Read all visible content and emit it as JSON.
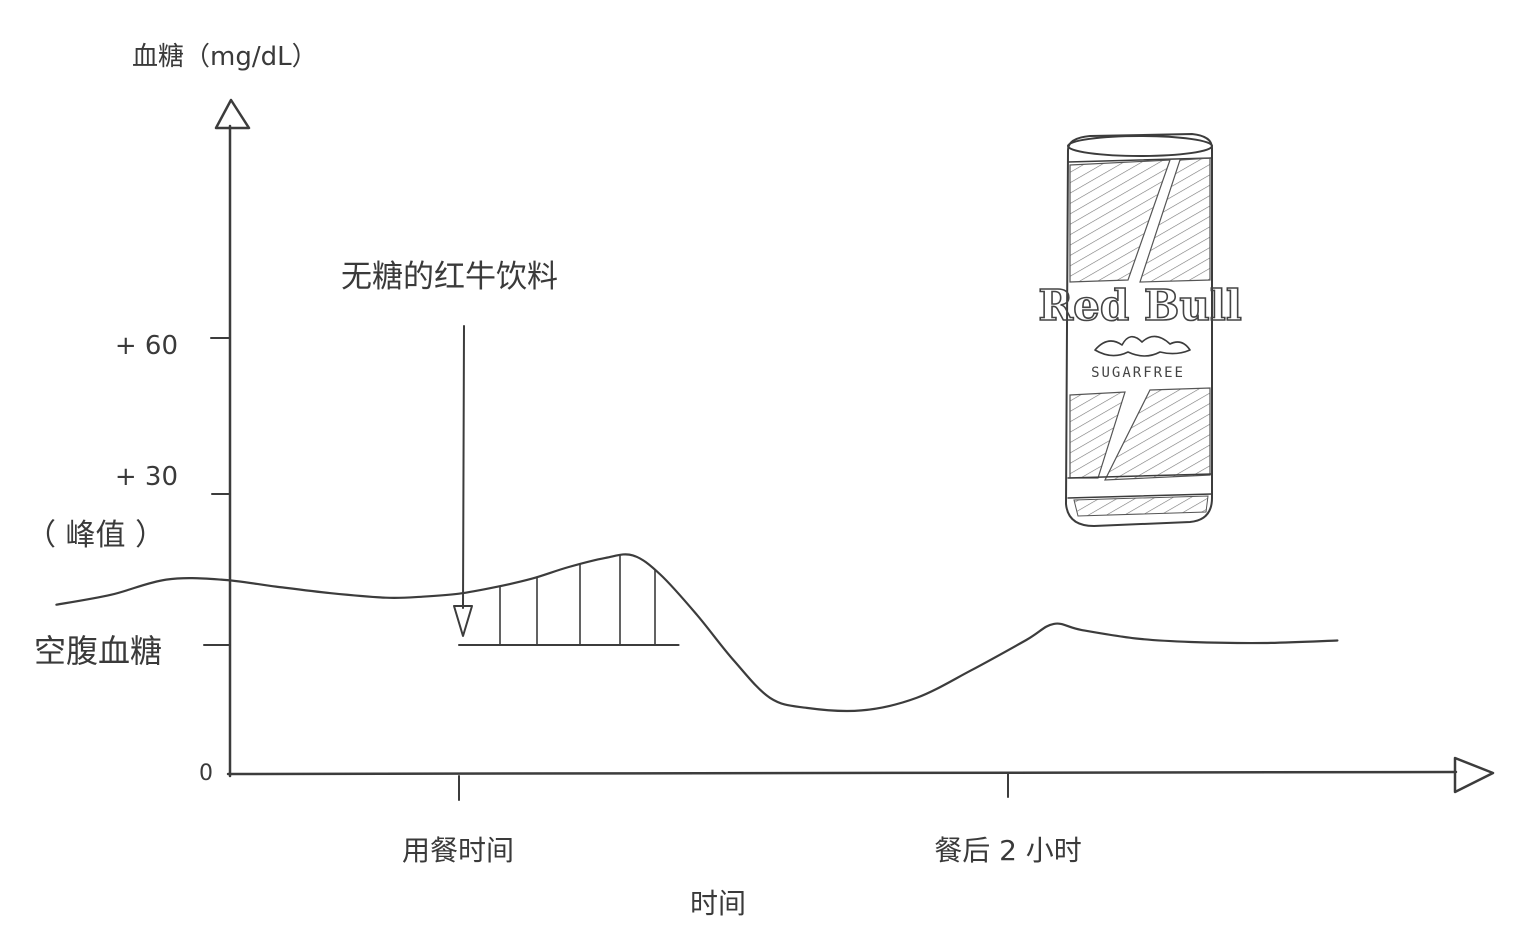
{
  "chart_data": {
    "type": "line",
    "ylabel": "血糖（mg/dL）",
    "xlabel": "时间",
    "y_ticks": [
      {
        "value": 0,
        "label": "0"
      },
      {
        "value": 30,
        "label": "+ 30"
      },
      {
        "value": 60,
        "label": "+ 60"
      }
    ],
    "y_reference": {
      "label": "空腹血糖",
      "peak_note": "（ 峰值 ）"
    },
    "x_ticks": [
      {
        "value": 1,
        "label": "用餐时间"
      },
      {
        "value": 4,
        "label": "餐后 2 小时"
      }
    ],
    "xlim": [
      -1.2,
      6.6
    ],
    "ylim": [
      0,
      95
    ],
    "series": [
      {
        "points": [
          [
            -1.2,
            8
          ],
          [
            -0.9,
            10
          ],
          [
            -0.6,
            13
          ],
          [
            -0.3,
            13
          ],
          [
            0.0,
            11.6
          ],
          [
            0.3,
            10.3
          ],
          [
            0.6,
            9.4
          ],
          [
            0.8,
            9.6
          ],
          [
            1.0,
            10.2
          ],
          [
            1.2,
            11.5
          ],
          [
            1.4,
            13.2
          ],
          [
            1.6,
            15.5
          ],
          [
            1.8,
            17.3
          ],
          [
            1.95,
            17.8
          ],
          [
            2.1,
            14
          ],
          [
            2.3,
            6
          ],
          [
            2.5,
            -3
          ],
          [
            2.7,
            -10.5
          ],
          [
            2.9,
            -12.5
          ],
          [
            3.2,
            -13
          ],
          [
            3.5,
            -10.5
          ],
          [
            3.8,
            -5
          ],
          [
            4.1,
            1
          ],
          [
            4.25,
            4.2
          ],
          [
            4.4,
            3
          ],
          [
            4.7,
            1.3
          ],
          [
            5.0,
            0.6
          ],
          [
            5.4,
            0.4
          ],
          [
            5.8,
            0.9
          ]
        ]
      }
    ],
    "shaded_region": {
      "x_start": 1.0,
      "x_end": 2.2
    },
    "annotation": {
      "text": "无糖的红牛饮料",
      "x": 1.0
    },
    "image": {
      "description_label": "Red Bull SUGARFREE can",
      "brand": "Red Bull",
      "sub": "SUGARFREE"
    }
  },
  "colors": {
    "ink": "#3c3c3c",
    "background": "#ffffff"
  }
}
